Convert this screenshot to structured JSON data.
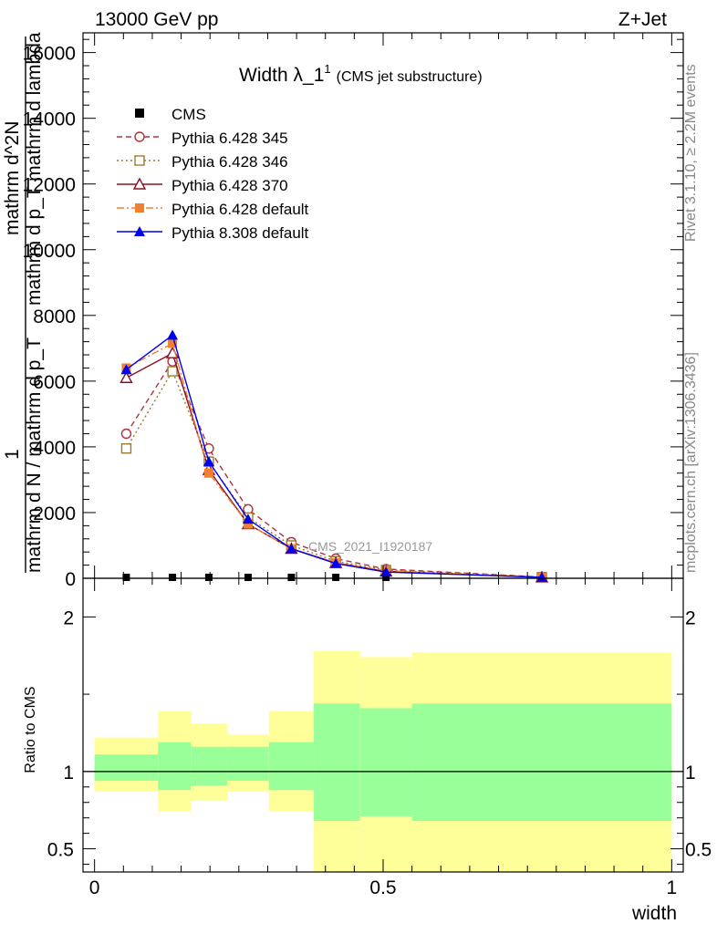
{
  "header": {
    "left": "13000 GeV pp",
    "right": "Z+Jet"
  },
  "side_text": {
    "rivet": "Rivet 3.1.10, ≥ 2.2M events",
    "site": "mcplots.cern.ch [arXiv:1306.3436]"
  },
  "watermark": "CMS_2021_I1920187",
  "chart_data": [
    {
      "type": "line",
      "title": "Width λ_1",
      "title_superscript": "1",
      "subtitle": "(CMS jet substructure)",
      "xlabel": "width",
      "ylabel_numerator": "1",
      "ylabel_denominator": "mathrm d N / mathrm d p_T",
      "ylabel_part2": "mathrm d^2N",
      "ylabel_part3": "mathrm d p_T mathrm d lambda",
      "xlim": [
        -0.02,
        1.02
      ],
      "ylim": [
        0,
        16600
      ],
      "xticks": [
        0,
        0.5,
        1
      ],
      "xtick_labels": [
        "0",
        "0.5",
        "1"
      ],
      "yticks": [
        0,
        2000,
        4000,
        6000,
        8000,
        10000,
        12000,
        14000,
        16000
      ],
      "ytick_labels": [
        "0",
        "2000",
        "4000",
        "6000",
        "8000",
        "10000",
        "12000",
        "14000",
        "16000"
      ],
      "legend_position": "top-left",
      "series": [
        {
          "name": "CMS",
          "color": "#000000",
          "marker": "square-filled",
          "line": "none",
          "x": [
            0.055,
            0.135,
            0.198,
            0.266,
            0.341,
            0.418,
            0.505,
            0.775
          ],
          "y": [
            0,
            0,
            0,
            0,
            0,
            0,
            0,
            0
          ]
        },
        {
          "name": "Pythia 6.428 345",
          "color": "#b03040",
          "marker": "circle-open",
          "line": "dashed",
          "x": [
            0.055,
            0.135,
            0.198,
            0.266,
            0.341,
            0.418,
            0.505,
            0.775
          ],
          "y": [
            4400,
            6600,
            3950,
            2100,
            1100,
            600,
            280,
            40
          ]
        },
        {
          "name": "Pythia 6.428 346",
          "color": "#9a7a30",
          "marker": "square-open",
          "line": "dotted",
          "x": [
            0.055,
            0.135,
            0.198,
            0.266,
            0.341,
            0.418,
            0.505,
            0.775
          ],
          "y": [
            3950,
            6300,
            3550,
            1850,
            1000,
            520,
            250,
            35
          ]
        },
        {
          "name": "Pythia 6.428 370",
          "color": "#8b1020",
          "marker": "triangle-open",
          "line": "solid",
          "x": [
            0.055,
            0.135,
            0.198,
            0.266,
            0.341,
            0.418,
            0.505,
            0.775
          ],
          "y": [
            6100,
            6850,
            3300,
            1650,
            900,
            470,
            210,
            30
          ]
        },
        {
          "name": "Pythia 6.428 default",
          "color": "#f08030",
          "marker": "square-filled",
          "line": "dashdot",
          "x": [
            0.055,
            0.135,
            0.198,
            0.266,
            0.341,
            0.418,
            0.505,
            0.775
          ],
          "y": [
            6400,
            7150,
            3200,
            1650,
            900,
            470,
            230,
            35
          ]
        },
        {
          "name": "Pythia 8.308 default",
          "color": "#0000ee",
          "marker": "triangle-filled",
          "line": "solid",
          "x": [
            0.055,
            0.135,
            0.198,
            0.266,
            0.341,
            0.418,
            0.505,
            0.775
          ],
          "y": [
            6350,
            7400,
            3550,
            1800,
            900,
            450,
            190,
            30
          ]
        }
      ]
    },
    {
      "type": "area",
      "ylabel": "Ratio to CMS",
      "xlabel": "width",
      "xlim": [
        -0.02,
        1.02
      ],
      "ylim": [
        0.35,
        2.25
      ],
      "yticks": [
        0.5,
        1,
        2
      ],
      "ytick_labels": [
        "0.5",
        "1",
        "2"
      ],
      "reference_line": 1,
      "bins": [
        {
          "lo": 0.0,
          "hi": 0.11,
          "inner": [
            0.94,
            1.11
          ],
          "outer": [
            0.87,
            1.22
          ]
        },
        {
          "lo": 0.11,
          "hi": 0.167,
          "inner": [
            0.88,
            1.19
          ],
          "outer": [
            0.74,
            1.39
          ]
        },
        {
          "lo": 0.167,
          "hi": 0.23,
          "inner": [
            0.91,
            1.16
          ],
          "outer": [
            0.81,
            1.31
          ]
        },
        {
          "lo": 0.23,
          "hi": 0.302,
          "inner": [
            0.94,
            1.16
          ],
          "outer": [
            0.87,
            1.24
          ]
        },
        {
          "lo": 0.302,
          "hi": 0.38,
          "inner": [
            0.88,
            1.19
          ],
          "outer": [
            0.74,
            1.39
          ]
        },
        {
          "lo": 0.38,
          "hi": 0.46,
          "inner": [
            0.68,
            1.44
          ],
          "outer": [
            0.0,
            1.78
          ]
        },
        {
          "lo": 0.46,
          "hi": 0.55,
          "inner": [
            0.71,
            1.41
          ],
          "outer": [
            0.0,
            1.74
          ]
        },
        {
          "lo": 0.55,
          "hi": 1.0,
          "inner": [
            0.68,
            1.44
          ],
          "outer": [
            0.0,
            1.77
          ]
        }
      ],
      "band_colors": {
        "inner": "#99ff99",
        "outer": "#ffff99"
      }
    }
  ]
}
